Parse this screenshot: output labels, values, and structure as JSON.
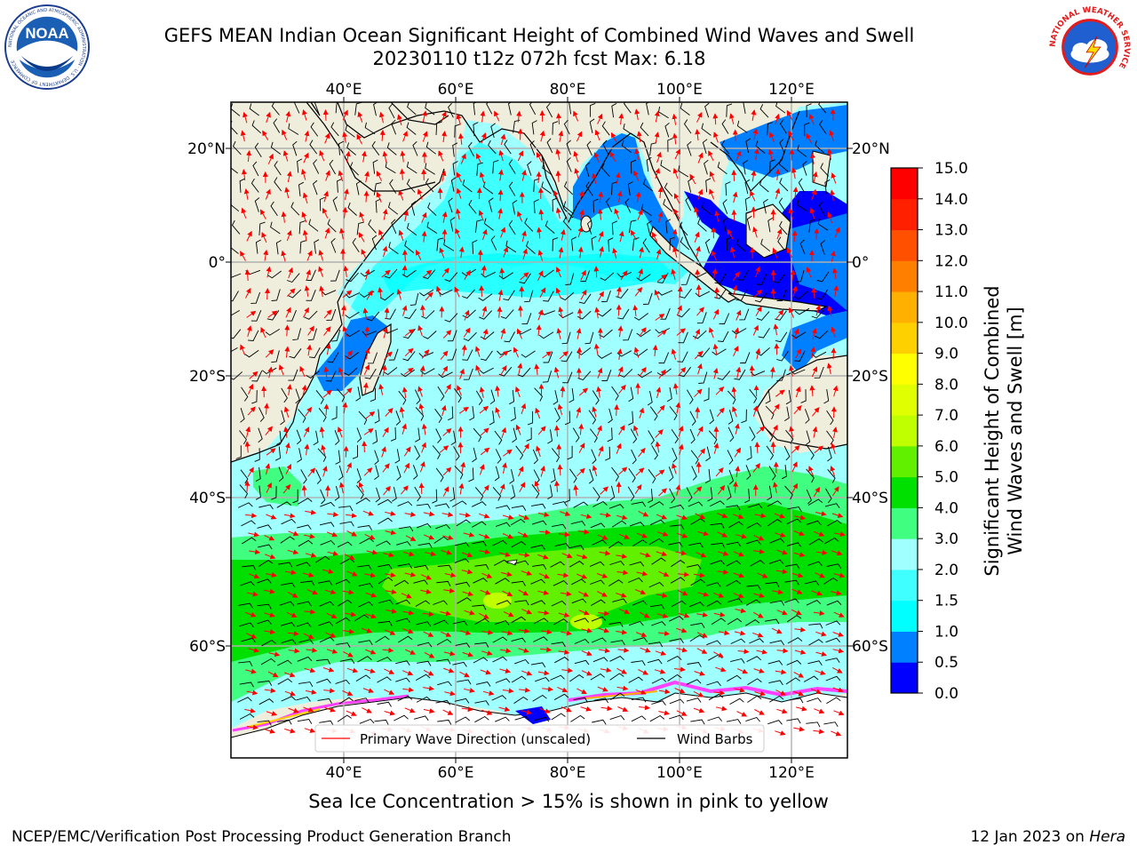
{
  "title": {
    "line1": "GEFS MEAN Indian Ocean Significant Height of Combined Wind Waves and Swell",
    "line2": "20230110 t12z 072h fcst   Max: 6.18"
  },
  "map": {
    "lon_ticks": [
      "40°E",
      "60°E",
      "80°E",
      "100°E",
      "120°E"
    ],
    "lat_ticks": [
      "20°N",
      "0°",
      "20°S",
      "40°S",
      "60°S"
    ],
    "lon_values": [
      40,
      60,
      80,
      100,
      120
    ],
    "lat_values": [
      20,
      0,
      -20,
      -40,
      -60
    ],
    "legend": {
      "wave_label": "Primary Wave Direction (unscaled)",
      "barb_label": "Wind Barbs"
    },
    "caption": "Sea Ice Concentration > 15% is shown in pink to yellow"
  },
  "colorbar": {
    "label_line1": "Significant Height of Combined",
    "label_line2": "Wind Waves and Swell [m]",
    "ticks": [
      "0.0",
      "0.5",
      "1.0",
      "1.5",
      "2.0",
      "3.0",
      "4.0",
      "5.0",
      "6.0",
      "7.0",
      "8.0",
      "9.0",
      "10.0",
      "11.0",
      "12.0",
      "13.0",
      "14.0",
      "15.0"
    ],
    "colors": [
      "#0000ff",
      "#0080ff",
      "#00ffff",
      "#40ffff",
      "#a0ffff",
      "#40ff80",
      "#00e000",
      "#60f000",
      "#c0ff00",
      "#e0ff00",
      "#ffff00",
      "#ffd000",
      "#ffb000",
      "#ff8000",
      "#ff5000",
      "#ff2000",
      "#ff0000"
    ]
  },
  "footer": {
    "left": "NCEP/EMC/Verification Post Processing Product Generation Branch",
    "right_prefix": "12 Jan 2023 on ",
    "right_host": "Hera"
  },
  "logos": {
    "noaa_text": "NOAA",
    "noaa_ring": "NATIONAL OCEANIC AND ATMOSPHERIC ADMINISTRATION · U.S. DEPARTMENT OF COMMERCE",
    "nws_ring": "NATIONAL WEATHER SERVICE"
  }
}
